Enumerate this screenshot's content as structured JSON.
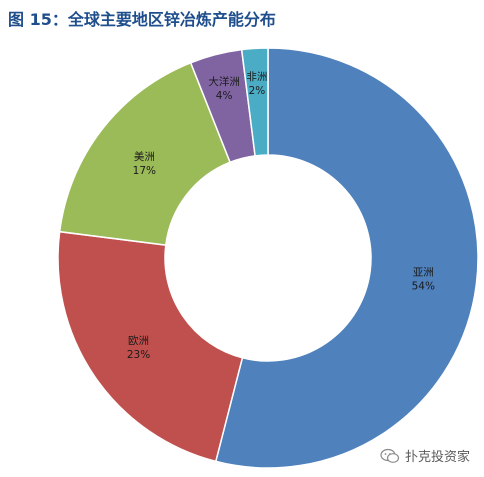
{
  "title": "图 15：全球主要地区锌冶炼产能分布",
  "watermark": "扑克投资家",
  "chart_data": {
    "type": "pie",
    "donut": true,
    "slices": [
      {
        "name": "亚洲",
        "value": 54,
        "label": "54%",
        "color": "#4f81bd"
      },
      {
        "name": "欧洲",
        "value": 23,
        "label": "23%",
        "color": "#c0504d"
      },
      {
        "name": "美洲",
        "value": 17,
        "label": "17%",
        "color": "#9bbb59"
      },
      {
        "name": "大洋洲",
        "value": 4,
        "label": "4%",
        "color": "#8064a2"
      },
      {
        "name": "非洲",
        "value": 2,
        "label": "2%",
        "color": "#4bacc6"
      }
    ],
    "start_angle": "top",
    "direction": "clockwise",
    "legend": "none"
  }
}
